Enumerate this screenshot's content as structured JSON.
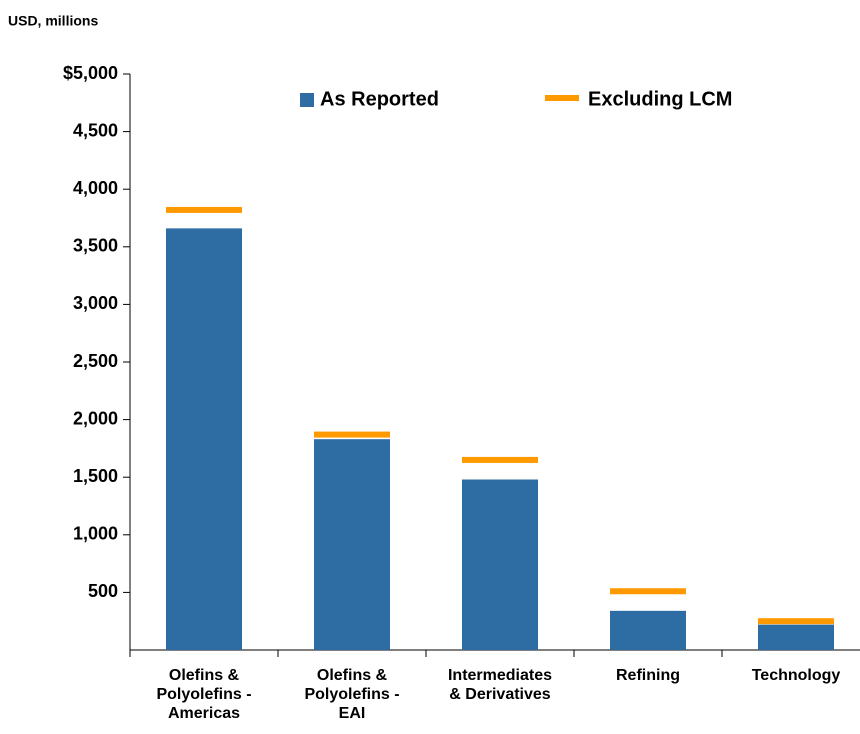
{
  "chart_data": {
    "type": "bar",
    "unit_label": "USD, millions",
    "categories": [
      "Olefins & Polyolefins - Americas",
      "Olefins & Polyolefins - EAI",
      "Intermediates & Derivatives",
      "Refining",
      "Technology"
    ],
    "series": [
      {
        "name": "As Reported",
        "color": "#2e6da4",
        "mark": "bar",
        "values": [
          3660,
          1830,
          1480,
          340,
          220
        ]
      },
      {
        "name": "Excluding LCM",
        "color": "#ff9900",
        "mark": "dash",
        "values": [
          3820,
          1870,
          1650,
          510,
          250
        ]
      }
    ],
    "ylim": [
      0,
      5000
    ],
    "yticks": [
      {
        "value": 500,
        "label": "500"
      },
      {
        "value": 1000,
        "label": "1,000"
      },
      {
        "value": 1500,
        "label": "1,500"
      },
      {
        "value": 2000,
        "label": "2,000"
      },
      {
        "value": 2500,
        "label": "2,500"
      },
      {
        "value": 3000,
        "label": "3,000"
      },
      {
        "value": 3500,
        "label": "3,500"
      },
      {
        "value": 4000,
        "label": "4,000"
      },
      {
        "value": 4500,
        "label": "4,500"
      },
      {
        "value": 5000,
        "label": "$5,000"
      }
    ],
    "legend": "top"
  }
}
